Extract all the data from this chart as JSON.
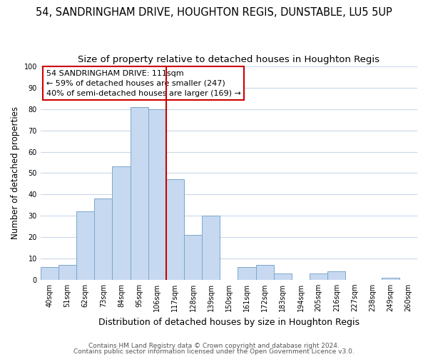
{
  "title": "54, SANDRINGHAM DRIVE, HOUGHTON REGIS, DUNSTABLE, LU5 5UP",
  "subtitle": "Size of property relative to detached houses in Houghton Regis",
  "xlabel": "Distribution of detached houses by size in Houghton Regis",
  "ylabel": "Number of detached properties",
  "bar_labels": [
    "40sqm",
    "51sqm",
    "62sqm",
    "73sqm",
    "84sqm",
    "95sqm",
    "106sqm",
    "117sqm",
    "128sqm",
    "139sqm",
    "150sqm",
    "161sqm",
    "172sqm",
    "183sqm",
    "194sqm",
    "205sqm",
    "216sqm",
    "227sqm",
    "238sqm",
    "249sqm",
    "260sqm"
  ],
  "bar_values": [
    6,
    7,
    32,
    38,
    53,
    81,
    80,
    47,
    21,
    30,
    0,
    6,
    7,
    3,
    0,
    3,
    4,
    0,
    0,
    1,
    0
  ],
  "bar_color": "#c6d9f0",
  "bar_edge_color": "#7da6cc",
  "annotation_line1": "54 SANDRINGHAM DRIVE: 111sqm",
  "annotation_line2": "← 59% of detached houses are smaller (247)",
  "annotation_line3": "40% of semi-detached houses are larger (169) →",
  "vline_x": 6.5,
  "vline_color": "#cc0000",
  "ylim": [
    0,
    100
  ],
  "yticks": [
    0,
    10,
    20,
    30,
    40,
    50,
    60,
    70,
    80,
    90,
    100
  ],
  "grid_color": "#c8d8e8",
  "footer1": "Contains HM Land Registry data © Crown copyright and database right 2024.",
  "footer2": "Contains public sector information licensed under the Open Government Licence v3.0.",
  "annotation_box_facecolor": "#ffffff",
  "annotation_box_edgecolor": "#cc0000",
  "title_fontsize": 10.5,
  "subtitle_fontsize": 9.5,
  "xlabel_fontsize": 9,
  "ylabel_fontsize": 8.5,
  "annotation_fontsize": 8,
  "tick_fontsize": 7,
  "footer_fontsize": 6.5
}
